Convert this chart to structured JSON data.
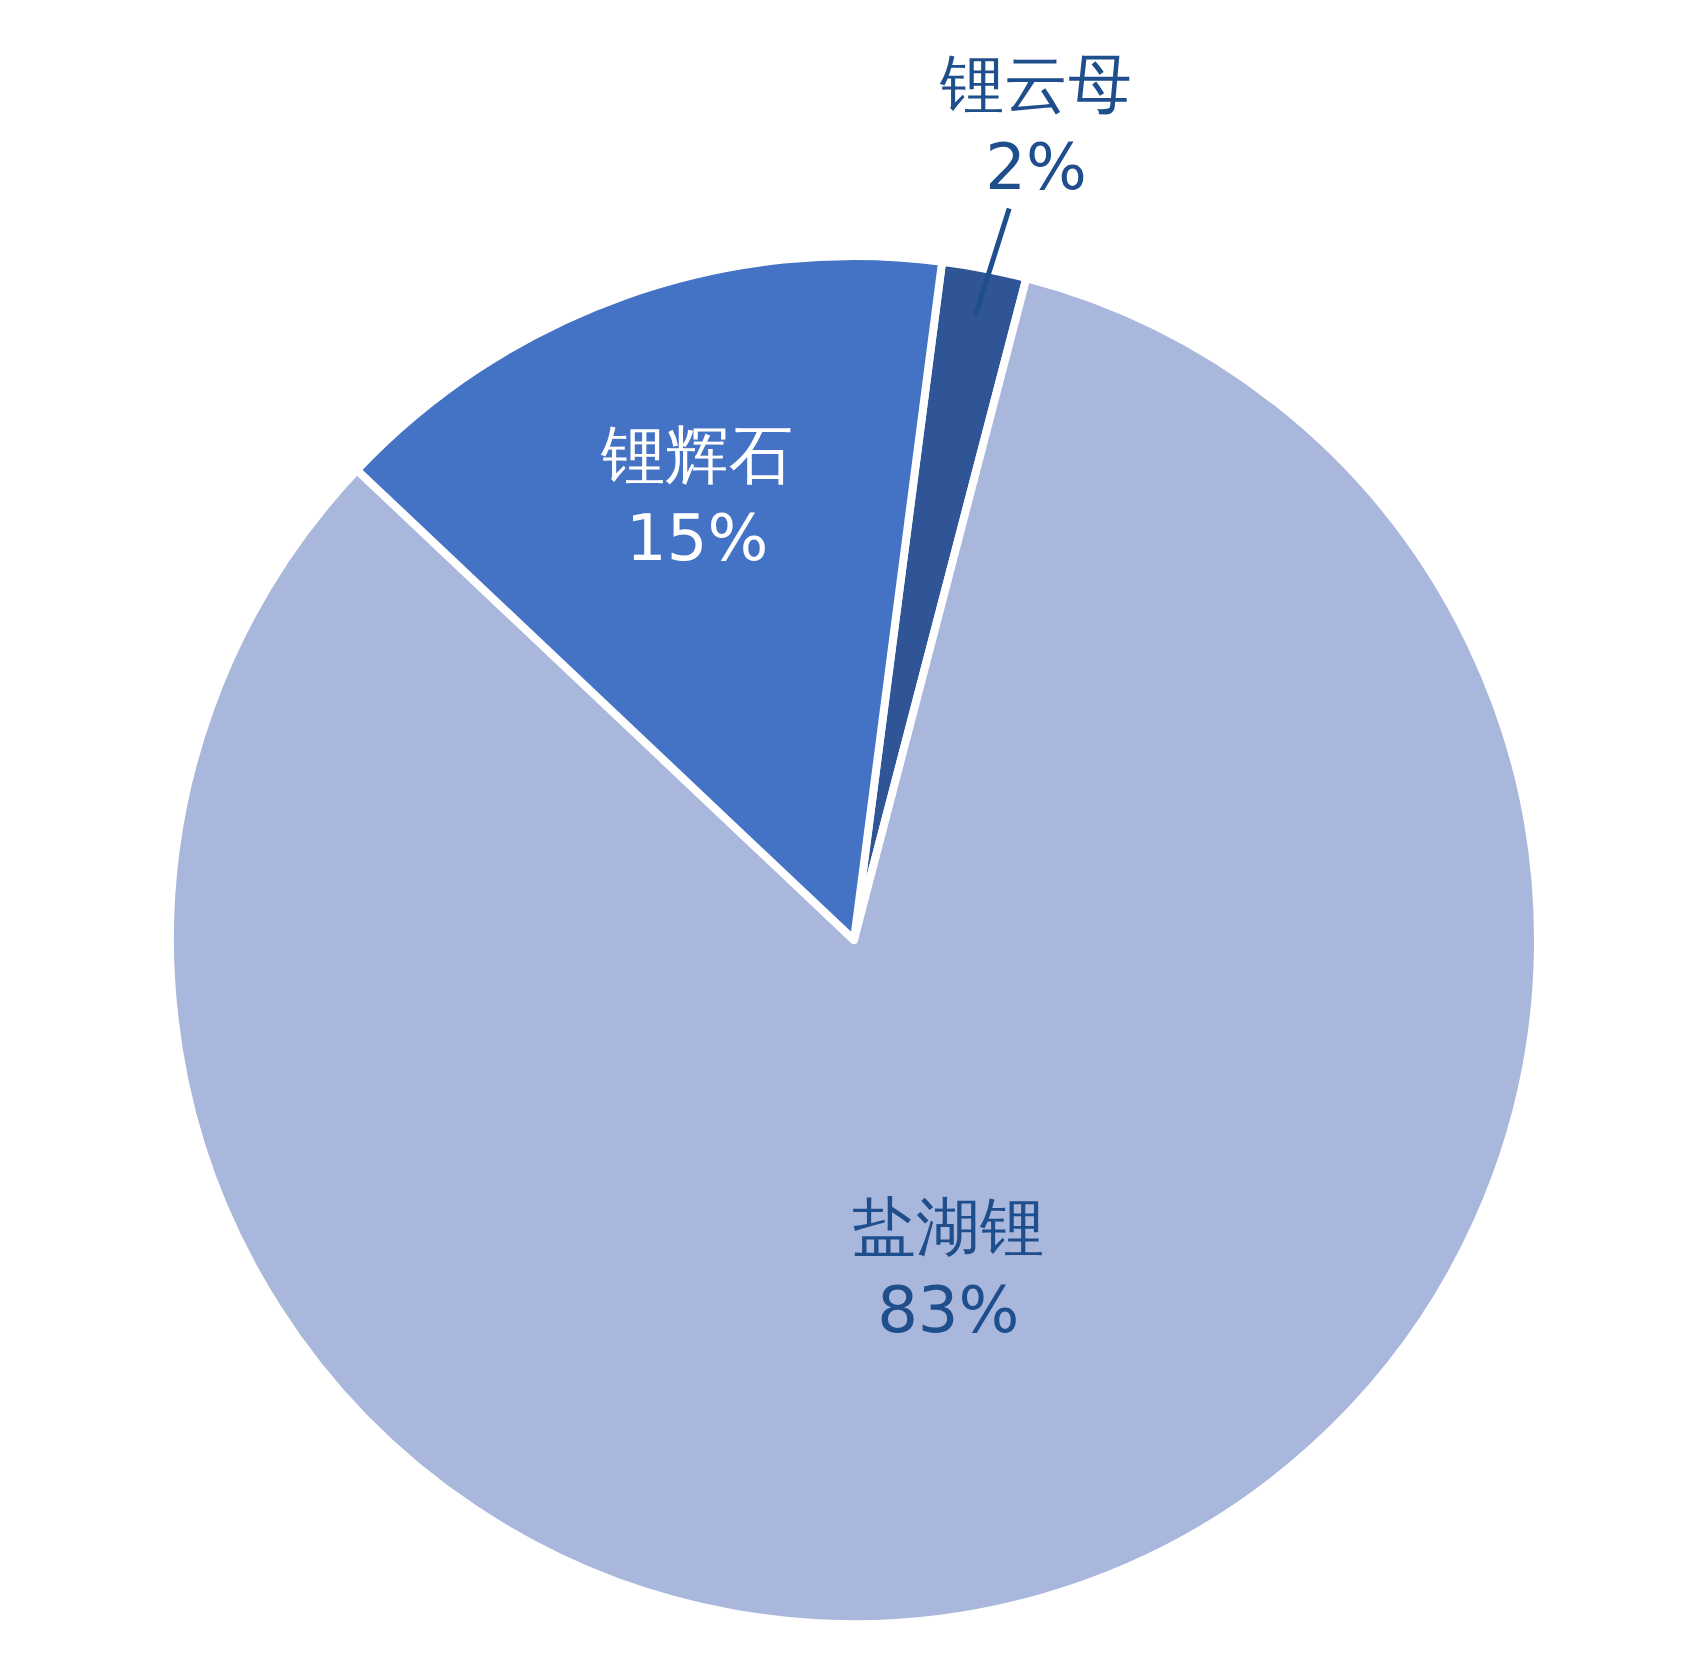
{
  "chart_data": {
    "type": "pie",
    "categories": [
      "锂云母",
      "盐湖锂",
      "锂辉石"
    ],
    "values": [
      2,
      83,
      15
    ],
    "colors": [
      "#2f5597",
      "#a9b7dc",
      "#4472c4"
    ],
    "value_labels": [
      "2%",
      "83%",
      "15%"
    ]
  }
}
